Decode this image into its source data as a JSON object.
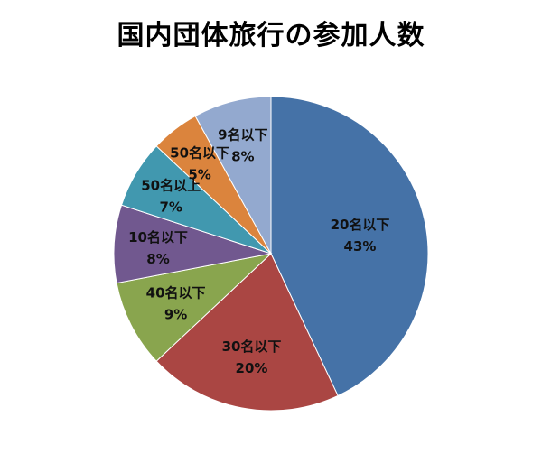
{
  "chart_data": {
    "type": "pie",
    "title": "国内団体旅行の参加人数",
    "start_angle_deg": 0,
    "direction": "clockwise",
    "legend": "none",
    "slices": [
      {
        "label": "20名以下",
        "value": 43,
        "value_label": "43%",
        "color": "#4572a7"
      },
      {
        "label": "30名以下",
        "value": 20,
        "value_label": "20%",
        "color": "#aa4643"
      },
      {
        "label": "40名以下",
        "value": 9,
        "value_label": "9%",
        "color": "#89a54e"
      },
      {
        "label": "10名以下",
        "value": 8,
        "value_label": "8%",
        "color": "#71588f"
      },
      {
        "label": "50名以上",
        "value": 7,
        "value_label": "7%",
        "color": "#4198af"
      },
      {
        "label": "50名以下",
        "value": 5,
        "value_label": "5%",
        "color": "#db843d"
      },
      {
        "label": "9名以下",
        "value": 8,
        "value_label": "8%",
        "color": "#93a9cf"
      }
    ]
  }
}
